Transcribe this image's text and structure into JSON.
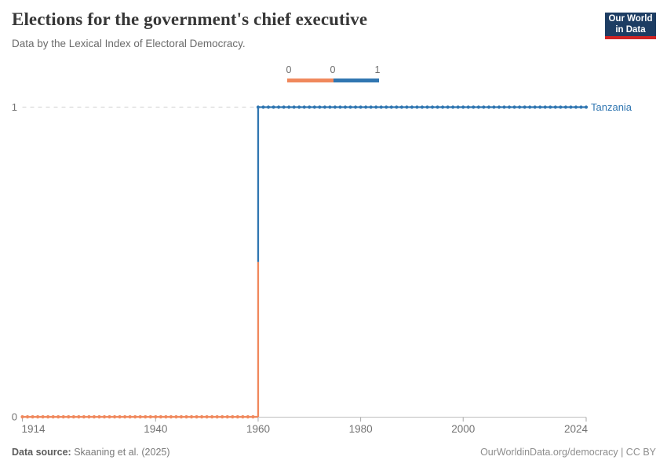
{
  "header": {
    "title": "Elections for the government's chief executive",
    "subtitle": "Data by the Lexical Index of Electoral Democracy."
  },
  "logo": {
    "line1": "Our World",
    "line2": "in Data"
  },
  "legend": {
    "labels": [
      "0",
      "0",
      "1"
    ]
  },
  "chart_data": {
    "type": "line",
    "subtype": "step",
    "title": "Elections for the government's chief executive",
    "entity_label": "Tanzania",
    "x_range": [
      1914,
      2024
    ],
    "y_range": [
      0,
      1
    ],
    "x_ticks": [
      1914,
      1940,
      1960,
      1980,
      2000,
      2024
    ],
    "y_ticks": [
      0,
      1
    ],
    "series": [
      {
        "name": "Tanzania",
        "steps": [
          {
            "from_year": 1914,
            "to_year": 1959,
            "value": 0
          },
          {
            "from_year": 1960,
            "to_year": 2024,
            "value": 1
          }
        ]
      }
    ],
    "value_colors": {
      "0": "#F0885C",
      "1": "#3076B1"
    },
    "grid": "dashed horizontal gridline at y=1",
    "legend_position": "top-center"
  },
  "colors": {
    "axis_line": "#cccccc",
    "tick": "#aaaaaa",
    "gridline": "#d9d9d9",
    "axis_text": "#737373",
    "entity_text": "#3076B1"
  },
  "footer": {
    "source_label": "Data source:",
    "source_value": " Skaaning et al. (2025)",
    "attribution": "OurWorldinData.org/democracy | CC BY"
  }
}
